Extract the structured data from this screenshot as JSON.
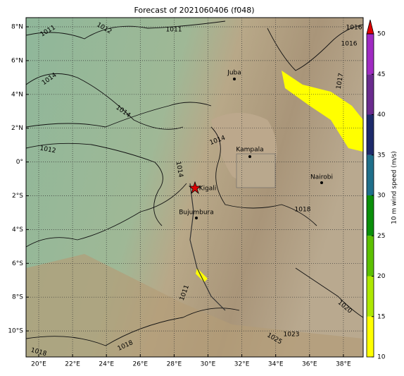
{
  "title": "Forecast of 2021060406 (f048)",
  "map": {
    "lon_ticks": [
      "20°E",
      "22°E",
      "24°E",
      "26°E",
      "28°E",
      "30°E",
      "32°E",
      "34°E",
      "36°E",
      "38°E"
    ],
    "lat_ticks": [
      "8°N",
      "6°N",
      "4°N",
      "2°N",
      "0°",
      "2°S",
      "4°S",
      "6°S",
      "8°S",
      "10°S"
    ],
    "cities": [
      "Juba",
      "Kampala",
      "Kigali",
      "Bujumbura",
      "Nairobi"
    ],
    "isobar_labels": [
      "1011",
      "1012",
      "1011",
      "1014",
      "1014",
      "1012",
      "1014",
      "1014",
      "1016",
      "1018",
      "1011",
      "1020",
      "1018",
      "1023",
      "1025",
      "1017",
      "1016",
      "1018"
    ]
  },
  "colorbar": {
    "label": "10 m wind speed (m/s)",
    "range": [
      10,
      50
    ],
    "ticks": [
      10,
      15,
      20,
      25,
      30,
      35,
      40,
      45,
      50
    ],
    "colors": [
      "#ffff00",
      "#aee800",
      "#5cc000",
      "#0a8f0a",
      "#1f6f8b",
      "#1d2a6b",
      "#6a2a8e",
      "#a02ac2"
    ],
    "extend_color": "#e00000"
  }
}
